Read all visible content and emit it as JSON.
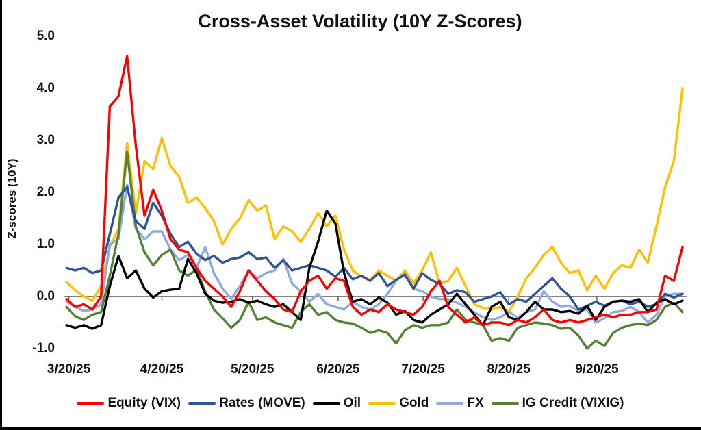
{
  "title": "Cross-Asset Volatility (10Y Z-Scores)",
  "y_axis_title": "Z-scores (10Y)",
  "chart_data": {
    "type": "line",
    "title": "Cross-Asset Volatility (10Y Z-Scores)",
    "xlabel": "",
    "ylabel": "Z-scores (10Y)",
    "ylim": [
      -1.0,
      5.0
    ],
    "grid": false,
    "legend_position": "bottom",
    "y_ticks": [
      {
        "label": "5.0",
        "value": 5
      },
      {
        "label": "4.0",
        "value": 4
      },
      {
        "label": "3.0",
        "value": 3
      },
      {
        "label": "2.0",
        "value": 2
      },
      {
        "label": "1.0",
        "value": 1
      },
      {
        "label": "0.0",
        "value": 0
      },
      {
        "label": "-1.0",
        "value": -1
      }
    ],
    "x_ticks": [
      {
        "label": "3/20/25",
        "pos": 0.004
      },
      {
        "label": "4/20/25",
        "pos": 0.155
      },
      {
        "label": "5/20/25",
        "pos": 0.302
      },
      {
        "label": "6/20/25",
        "pos": 0.441
      },
      {
        "label": "7/20/25",
        "pos": 0.579
      },
      {
        "label": "8/20/25",
        "pos": 0.718
      },
      {
        "label": "9/20/25",
        "pos": 0.861
      }
    ],
    "series": [
      {
        "name": "Equity (VIX)",
        "color": "#FF0000",
        "values": [
          -0.05,
          -0.2,
          -0.15,
          -0.25,
          0,
          3.65,
          3.85,
          4.62,
          2.9,
          1.55,
          2.05,
          1.65,
          1.1,
          0.9,
          0.85,
          0.55,
          0.3,
          0.15,
          0,
          -0.2,
          0.1,
          0.5,
          0.3,
          0.1,
          -0.05,
          -0.25,
          -0.3,
          0.1,
          0.3,
          0.4,
          0.15,
          0.35,
          0.3,
          -0.2,
          -0.35,
          -0.25,
          -0.3,
          -0.15,
          -0.25,
          -0.3,
          -0.35,
          -0.2,
          0.1,
          0.3,
          -0.2,
          -0.35,
          -0.5,
          -0.4,
          -0.55,
          -0.5,
          -0.5,
          -0.55,
          -0.45,
          -0.5,
          -0.4,
          -0.25,
          -0.45,
          -0.5,
          -0.45,
          -0.5,
          -0.45,
          -0.4,
          -0.35,
          -0.4,
          -0.35,
          -0.35,
          -0.3,
          -0.3,
          -0.25,
          0.4,
          0.3,
          0.95
        ]
      },
      {
        "name": "Rates (MOVE)",
        "color": "#2F5597",
        "values": [
          0.55,
          0.5,
          0.55,
          0.45,
          0.5,
          1.2,
          1.9,
          2.1,
          1.45,
          1.3,
          1.8,
          1.55,
          1.2,
          0.95,
          1.05,
          0.82,
          0.7,
          0.78,
          0.65,
          0.72,
          0.75,
          0.85,
          0.72,
          0.75,
          0.55,
          0.7,
          0.5,
          0.55,
          0.6,
          0.55,
          0.5,
          0.38,
          0.55,
          0.33,
          0.4,
          0.3,
          0.45,
          0.2,
          0.32,
          0.42,
          0.15,
          0.45,
          0.32,
          0.25,
          0.05,
          0.12,
          0.08,
          -0.1,
          -0.05,
          0,
          0.08,
          -0.15,
          -0.05,
          -0.1,
          0.05,
          0.2,
          0.35,
          0.15,
          0,
          -0.25,
          -0.18,
          -0.1,
          -0.18,
          -0.1,
          -0.08,
          -0.15,
          -0.1,
          -0.2,
          -0.15,
          0.05,
          -0.02,
          0.05
        ]
      },
      {
        "name": "Oil",
        "color": "#000000",
        "values": [
          -0.55,
          -0.6,
          -0.55,
          -0.62,
          -0.55,
          0.2,
          0.78,
          0.35,
          0.5,
          0.15,
          -0.02,
          0.1,
          0.13,
          0.15,
          0.72,
          0.45,
          0.05,
          -0.08,
          -0.12,
          -0.1,
          -0.05,
          -0.12,
          -0.08,
          -0.15,
          -0.2,
          -0.15,
          -0.3,
          -0.45,
          0.55,
          1.05,
          1.65,
          1.4,
          0.45,
          -0.1,
          -0.05,
          -0.15,
          -0.02,
          -0.12,
          -0.35,
          -0.28,
          -0.45,
          -0.5,
          -0.35,
          -0.25,
          -0.15,
          0.05,
          -0.15,
          -0.35,
          -0.55,
          -0.2,
          -0.1,
          -0.4,
          -0.45,
          -0.3,
          -0.1,
          -0.25,
          -0.25,
          -0.3,
          -0.28,
          -0.33,
          -0.18,
          -0.45,
          -0.2,
          -0.1,
          -0.08,
          -0.1,
          -0.05,
          -0.3,
          -0.12,
          -0.05,
          -0.15,
          -0.08
        ]
      },
      {
        "name": "Gold",
        "color": "#FFC000",
        "values": [
          0.28,
          0.12,
          0,
          -0.08,
          0.2,
          0.95,
          1.3,
          2.95,
          1.6,
          2.6,
          2.45,
          3.05,
          2.5,
          2.3,
          1.8,
          1.9,
          1.7,
          1.45,
          1,
          1.3,
          1.5,
          1.85,
          1.65,
          1.75,
          1.1,
          1.35,
          1.25,
          1.05,
          1.3,
          1.6,
          1.35,
          1.55,
          0.9,
          0.5,
          0.38,
          0.32,
          0.5,
          0.4,
          0.3,
          0.5,
          0.25,
          0.5,
          0.85,
          0.25,
          0.3,
          0.55,
          0.2,
          -0.15,
          -0.22,
          -0.25,
          -0.2,
          -0.3,
          0,
          0.35,
          0.55,
          0.8,
          0.95,
          0.65,
          0.45,
          0.5,
          0.12,
          0.4,
          0.15,
          0.45,
          0.6,
          0.55,
          0.9,
          0.65,
          1.35,
          2.1,
          2.6,
          4
        ]
      },
      {
        "name": "FX",
        "color": "#8FAADC",
        "values": [
          -0.1,
          -0.2,
          -0.28,
          -0.25,
          -0.15,
          1,
          1.1,
          2.15,
          1.3,
          1.1,
          1.25,
          1.25,
          0.9,
          0.7,
          0.8,
          0.55,
          0.95,
          0.45,
          0.15,
          -0.05,
          0.2,
          0.5,
          0.35,
          0.45,
          0.5,
          0.72,
          0.25,
          0.1,
          -0.1,
          0.05,
          -0.15,
          -0.2,
          -0.25,
          -0.1,
          -0.2,
          -0.25,
          -0.15,
          0.05,
          0.3,
          0.45,
          0.15,
          0.1,
          0,
          -0.05,
          -0.05,
          -0.12,
          -0.2,
          -0.3,
          -0.4,
          -0.45,
          -0.4,
          -0.3,
          -0.4,
          -0.3,
          -0.25,
          0.1,
          -0.1,
          -0.2,
          -0.18,
          -0.28,
          -0.25,
          -0.5,
          -0.42,
          -0.3,
          -0.28,
          -0.2,
          -0.3,
          -0.5,
          -0.35,
          0,
          0.05,
          0.05
        ]
      },
      {
        "name": "IG Credit (VIXIG)",
        "color": "#548235",
        "values": [
          -0.2,
          -0.38,
          -0.45,
          -0.35,
          -0.3,
          0.4,
          1.2,
          2.78,
          1.35,
          0.85,
          0.6,
          0.8,
          0.9,
          0.5,
          0.4,
          0.52,
          0.1,
          -0.25,
          -0.42,
          -0.6,
          -0.45,
          -0.1,
          -0.45,
          -0.4,
          -0.5,
          -0.55,
          -0.6,
          -0.3,
          -0.15,
          -0.35,
          -0.3,
          -0.45,
          -0.5,
          -0.52,
          -0.6,
          -0.7,
          -0.65,
          -0.7,
          -0.9,
          -0.65,
          -0.55,
          -0.6,
          -0.55,
          -0.55,
          -0.5,
          -0.25,
          -0.45,
          -0.5,
          -0.55,
          -0.85,
          -0.8,
          -0.85,
          -0.6,
          -0.55,
          -0.5,
          -0.52,
          -0.55,
          -0.62,
          -0.6,
          -0.75,
          -1,
          -0.85,
          -0.95,
          -0.7,
          -0.6,
          -0.55,
          -0.52,
          -0.55,
          -0.45,
          -0.2,
          -0.12,
          -0.3
        ]
      }
    ],
    "axis_color": "#595959"
  }
}
